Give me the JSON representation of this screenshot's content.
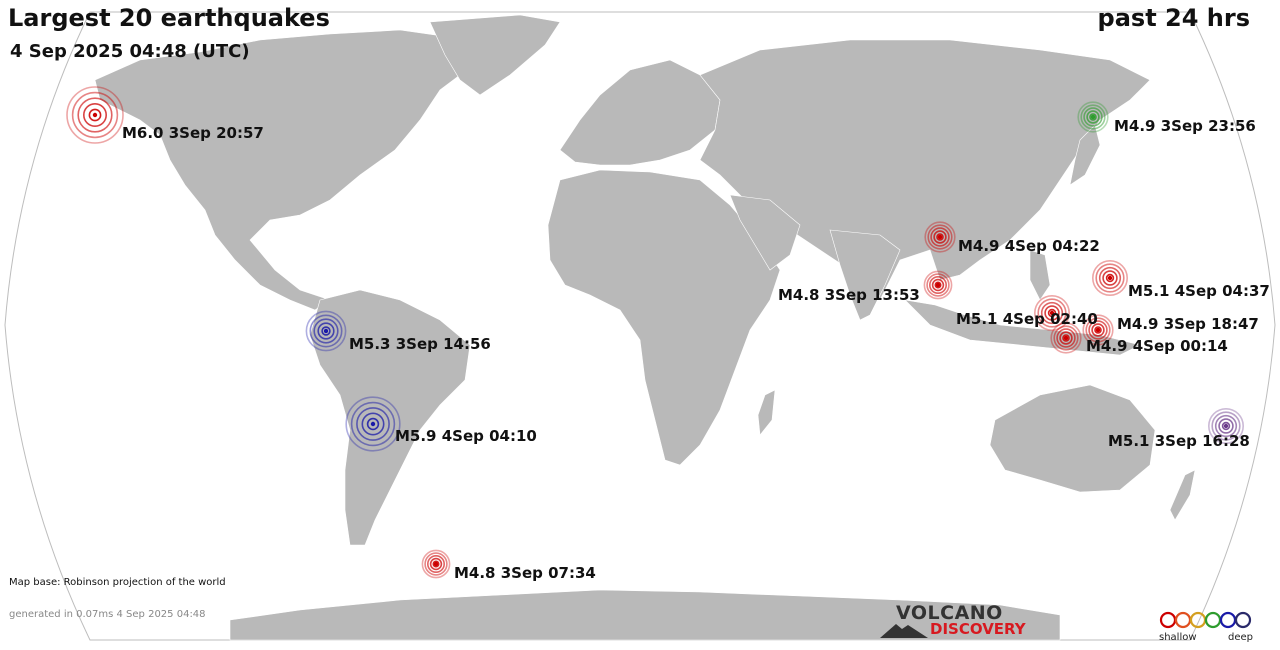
{
  "header": {
    "title": "Largest 20 earthquakes",
    "period": "past 24 hrs",
    "timestamp": "4 Sep 2025 04:48 (UTC)"
  },
  "footer": {
    "map_base": "Map base: Robinson projection of the world",
    "generated": "generated in 0.07ms  4 Sep 2025 04:48"
  },
  "logo": {
    "line1": "VOLCANO",
    "line2": "DISCOVERY"
  },
  "legend": {
    "shallow_label": "shallow",
    "deep_label": "deep"
  },
  "depth_colors": {
    "shallow": "#cc0000",
    "intermediate": "#2e9c2e",
    "deep": "#1a1aa8",
    "very_deep": "#6a3a8a"
  },
  "earthquakes": [
    {
      "label": "M6.0  3Sep 20:57",
      "magnitude": 6.0,
      "depth_class": "shallow"
    },
    {
      "label": "M4.9  3Sep 23:56",
      "magnitude": 4.9,
      "depth_class": "intermediate"
    },
    {
      "label": "M4.9  4Sep 04:22",
      "magnitude": 4.9,
      "depth_class": "shallow"
    },
    {
      "label": "M5.1  4Sep 04:37",
      "magnitude": 5.1,
      "depth_class": "shallow"
    },
    {
      "label": "M4.8  3Sep 13:53",
      "magnitude": 4.8,
      "depth_class": "shallow"
    },
    {
      "label": "M5.1  4Sep 02:40",
      "magnitude": 5.1,
      "depth_class": "shallow"
    },
    {
      "label": "M4.9  3Sep 18:47",
      "magnitude": 4.9,
      "depth_class": "shallow"
    },
    {
      "label": "M4.9  4Sep 00:14",
      "magnitude": 4.9,
      "depth_class": "shallow"
    },
    {
      "label": "M5.3  3Sep 14:56",
      "magnitude": 5.3,
      "depth_class": "deep"
    },
    {
      "label": "M5.9  4Sep 04:10",
      "magnitude": 5.9,
      "depth_class": "deep"
    },
    {
      "label": "M5.1  3Sep 16:28",
      "magnitude": 5.1,
      "depth_class": "very_deep"
    },
    {
      "label": "M4.8  3Sep 07:34",
      "magnitude": 4.8,
      "depth_class": "shallow"
    }
  ]
}
